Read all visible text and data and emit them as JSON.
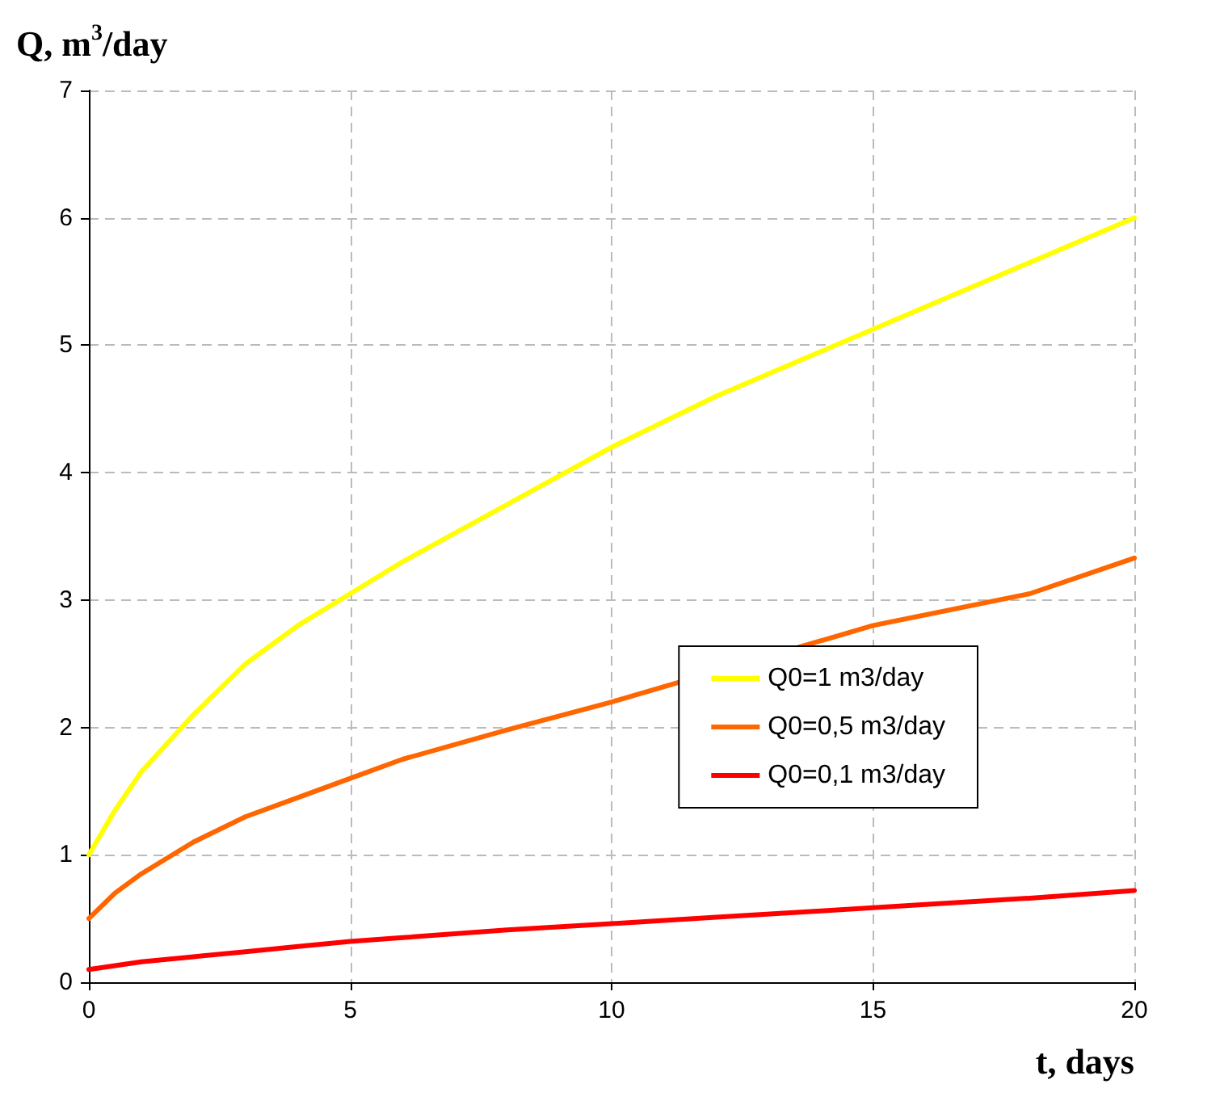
{
  "chart_data": {
    "type": "line",
    "xlabel": "t, days",
    "ylabel": "Q, m$^{3}$/day",
    "x": [
      0,
      0.5,
      1,
      2,
      3,
      4,
      5,
      6,
      8,
      10,
      12,
      14,
      16,
      18,
      20
    ],
    "series": [
      {
        "name": "Q0=1 m3/day",
        "color": "#ffff00",
        "values": [
          1.0,
          1.35,
          1.65,
          2.1,
          2.5,
          2.8,
          3.05,
          3.3,
          3.75,
          4.2,
          4.6,
          4.95,
          5.3,
          5.65,
          6.0
        ]
      },
      {
        "name": "Q0=0,5 m3/day",
        "color": "#ff6600",
        "x": [
          0,
          0.5,
          1,
          2,
          3,
          4,
          5,
          6,
          8,
          10,
          15,
          18,
          20
        ],
        "values": [
          0.5,
          0.7,
          0.85,
          1.1,
          1.3,
          1.45,
          1.6,
          1.75,
          1.98,
          2.2,
          2.8,
          3.05,
          3.33
        ]
      },
      {
        "name": "Q0=0,1 m3/day",
        "color": "#ff0000",
        "values": [
          0.1,
          0.13,
          0.16,
          0.2,
          0.24,
          0.28,
          0.32,
          0.35,
          0.41,
          0.46,
          0.51,
          0.56,
          0.61,
          0.66,
          0.72
        ]
      }
    ],
    "xlim": [
      0,
      20
    ],
    "xticks": [
      0,
      5,
      10,
      15,
      20
    ],
    "ylim": [
      0,
      7
    ],
    "yticks": [
      0,
      1,
      2,
      3,
      4,
      5,
      6,
      7
    ],
    "grid": true,
    "legend": "right",
    "marker": "none",
    "line_style": "solid"
  }
}
